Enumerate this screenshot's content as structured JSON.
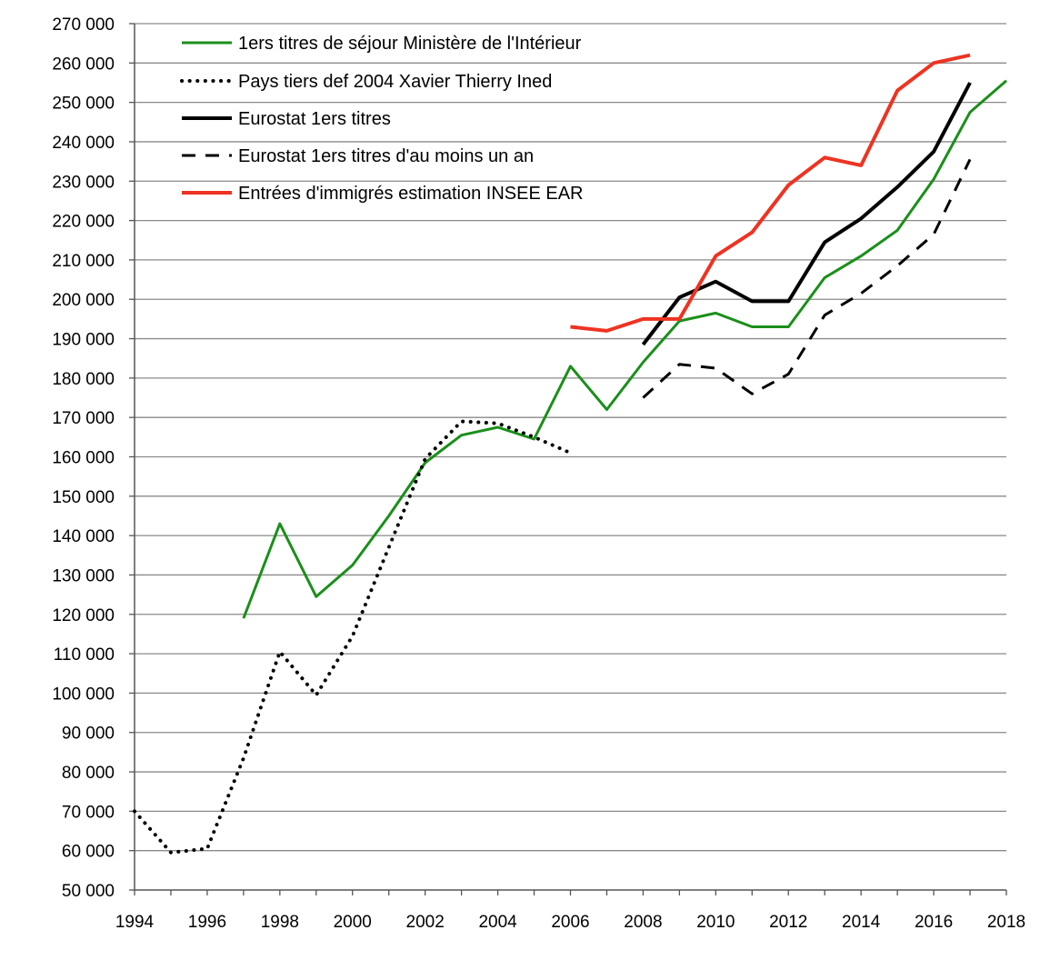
{
  "chart_data": {
    "type": "line",
    "title": "",
    "xlabel": "",
    "ylabel": "",
    "xlim": [
      1994,
      2018
    ],
    "ylim": [
      50000,
      270000
    ],
    "x_ticks": [
      "1994",
      "1996",
      "1998",
      "2000",
      "2002",
      "2004",
      "2006",
      "2008",
      "2010",
      "2012",
      "2014",
      "2016",
      "2018"
    ],
    "y_ticks": [
      "50 000",
      "60 000",
      "70 000",
      "80 000",
      "90 000",
      "100 000",
      "110 000",
      "120 000",
      "130 000",
      "140 000",
      "150 000",
      "160 000",
      "170 000",
      "180 000",
      "190 000",
      "200 000",
      "210 000",
      "220 000",
      "230 000",
      "240 000",
      "250 000",
      "260 000",
      "270 000"
    ],
    "grid": "horizontal",
    "legend_position": "top-left",
    "series": [
      {
        "name": "1ers titres de séjour Ministère  de l'Intérieur",
        "color": "#1a8f1a",
        "style": "solid",
        "points": [
          [
            1997,
            119000
          ],
          [
            1998,
            143000
          ],
          [
            1999,
            124500
          ],
          [
            2000,
            132500
          ],
          [
            2001,
            145000
          ],
          [
            2002,
            158500
          ],
          [
            2003,
            165500
          ],
          [
            2004,
            167500
          ],
          [
            2005,
            164500
          ],
          [
            2006,
            183000
          ],
          [
            2007,
            172000
          ],
          [
            2008,
            184000
          ],
          [
            2009,
            194500
          ],
          [
            2010,
            196500
          ],
          [
            2011,
            193000
          ],
          [
            2012,
            193000
          ],
          [
            2013,
            205500
          ],
          [
            2014,
            211000
          ],
          [
            2015,
            217500
          ],
          [
            2016,
            230500
          ],
          [
            2017,
            247500
          ],
          [
            2018,
            255500
          ]
        ]
      },
      {
        "name": "Pays tiers def 2004 Xavier Thierry  Ined",
        "color": "#000000",
        "style": "dotted",
        "points": [
          [
            1994,
            70000
          ],
          [
            1995,
            59500
          ],
          [
            1996,
            60500
          ],
          [
            1997,
            83500
          ],
          [
            1998,
            110500
          ],
          [
            1999,
            99500
          ],
          [
            2000,
            114500
          ],
          [
            2001,
            137000
          ],
          [
            2002,
            159500
          ],
          [
            2003,
            169000
          ],
          [
            2004,
            168500
          ],
          [
            2005,
            165000
          ],
          [
            2006,
            161000
          ]
        ]
      },
      {
        "name": "Eurostat 1ers titres",
        "color": "#000000",
        "style": "solid-thick",
        "points": [
          [
            2008,
            188500
          ],
          [
            2009,
            200500
          ],
          [
            2010,
            204500
          ],
          [
            2011,
            199500
          ],
          [
            2012,
            199500
          ],
          [
            2013,
            214500
          ],
          [
            2014,
            220500
          ],
          [
            2015,
            228500
          ],
          [
            2016,
            237500
          ],
          [
            2017,
            255000
          ]
        ]
      },
      {
        "name": "Eurostat 1ers titres d'au moins un an",
        "color": "#000000",
        "style": "dashed",
        "points": [
          [
            2008,
            175000
          ],
          [
            2009,
            183500
          ],
          [
            2010,
            182500
          ],
          [
            2011,
            176000
          ],
          [
            2012,
            181000
          ],
          [
            2013,
            196000
          ],
          [
            2014,
            201500
          ],
          [
            2015,
            208500
          ],
          [
            2016,
            216500
          ],
          [
            2017,
            235500
          ]
        ]
      },
      {
        "name": "Entrées d'immigrés estimation INSEE EAR",
        "color": "#ee3322",
        "style": "solid-thick",
        "points": [
          [
            2006,
            193000
          ],
          [
            2007,
            192000
          ],
          [
            2008,
            195000
          ],
          [
            2009,
            195000
          ],
          [
            2010,
            211000
          ],
          [
            2011,
            217000
          ],
          [
            2012,
            229000
          ],
          [
            2013,
            236000
          ],
          [
            2014,
            234000
          ],
          [
            2015,
            253000
          ],
          [
            2016,
            260000
          ],
          [
            2017,
            262000
          ]
        ]
      }
    ]
  }
}
